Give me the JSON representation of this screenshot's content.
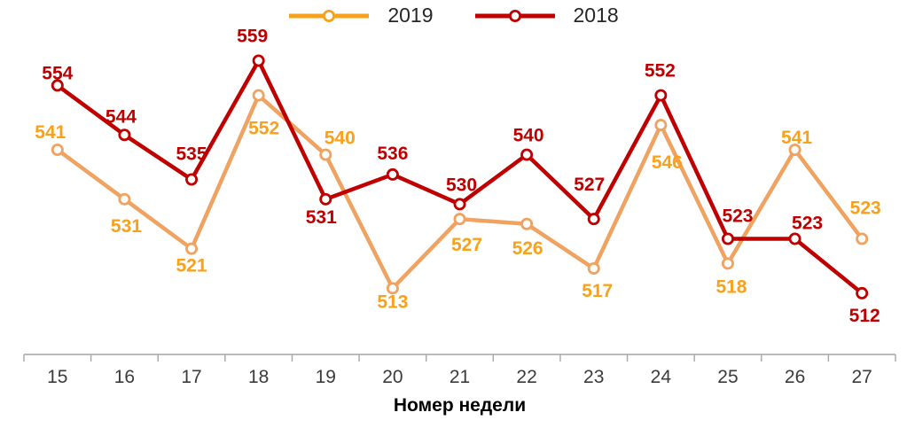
{
  "chart_data": {
    "type": "line",
    "title": "",
    "xlabel": "Номер недели",
    "ylabel": "",
    "categories": [
      "15",
      "16",
      "17",
      "18",
      "19",
      "20",
      "21",
      "22",
      "23",
      "24",
      "25",
      "26",
      "27"
    ],
    "series": [
      {
        "name": "2019",
        "values": [
          541,
          531,
          521,
          552,
          540,
          513,
          527,
          526,
          517,
          546,
          518,
          541,
          523
        ],
        "line_color": "#F0A261",
        "label_color": "#F9A11B",
        "legend_color": "#F9A11B",
        "label_dx": [
          -8,
          2,
          0,
          6,
          16,
          0,
          8,
          1,
          4,
          7,
          4,
          2,
          4
        ],
        "label_dy": [
          -13,
          37,
          26,
          44,
          -12,
          22,
          36,
          34,
          32,
          49,
          33,
          -7,
          -28
        ]
      },
      {
        "name": "2018",
        "values": [
          554,
          544,
          535,
          559,
          531,
          536,
          530,
          540,
          527,
          552,
          523,
          523,
          512
        ],
        "line_color": "#C00000",
        "label_color": "#C00000",
        "legend_color": "#C00000",
        "label_dx": [
          0,
          -4,
          0,
          -7,
          -5,
          0,
          2,
          2,
          -5,
          -1,
          11,
          14,
          3
        ],
        "label_dy": [
          -7,
          -14,
          -22,
          -21,
          27,
          -17,
          -15,
          -15,
          -32,
          -21,
          -19,
          -11,
          32
        ]
      }
    ],
    "ylim": [
      505,
      565
    ],
    "legend_position": "top-center",
    "grid": false,
    "marker_style": "open-circle",
    "axis_color": "#A6A6A6",
    "tick_label_color": "#3B3B3B",
    "axis_title_color": "#000000",
    "background_color": "#FFFFFF"
  }
}
